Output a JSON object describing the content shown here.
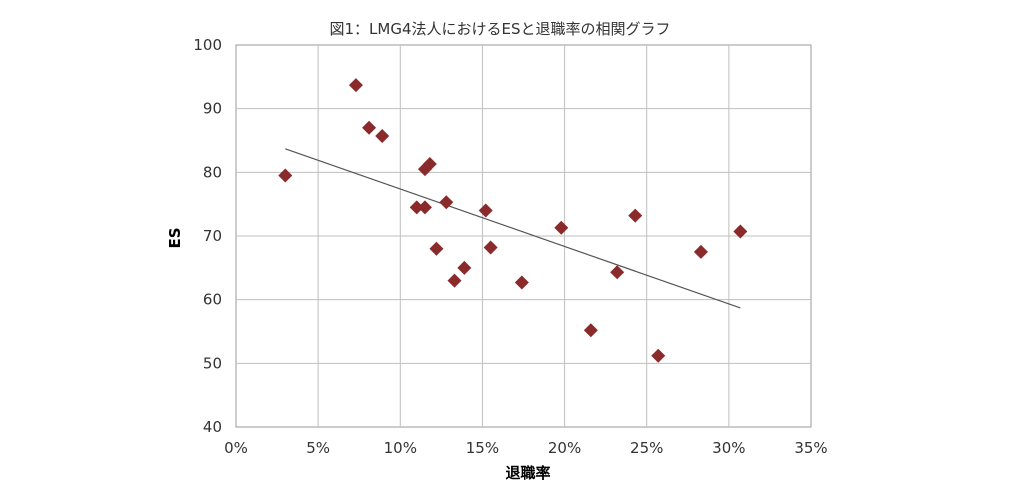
{
  "chart_data": {
    "type": "scatter",
    "title": "図1：LMG4法人におけるESと退職率の相関グラフ",
    "xlabel": "退職率",
    "ylabel": "ES",
    "xlim": [
      0,
      0.35
    ],
    "ylim": [
      40,
      100
    ],
    "x_ticks": [
      0,
      0.05,
      0.1,
      0.15,
      0.2,
      0.25,
      0.3,
      0.35
    ],
    "x_tick_labels": [
      "0%",
      "5%",
      "10%",
      "15%",
      "20%",
      "25%",
      "30%",
      "35%"
    ],
    "y_ticks": [
      40,
      50,
      60,
      70,
      80,
      90,
      100
    ],
    "y_tick_labels": [
      "40",
      "50",
      "60",
      "70",
      "80",
      "90",
      "100"
    ],
    "grid": true,
    "marker": "diamond",
    "colors": {
      "marker": "#8b2a2a",
      "trendline": "#555555",
      "grid": "#bfbfbf"
    },
    "series": [
      {
        "points": [
          {
            "x": 0.03,
            "y": 79.5
          },
          {
            "x": 0.073,
            "y": 93.7
          },
          {
            "x": 0.081,
            "y": 87.0
          },
          {
            "x": 0.089,
            "y": 85.7
          },
          {
            "x": 0.11,
            "y": 74.5
          },
          {
            "x": 0.115,
            "y": 80.5
          },
          {
            "x": 0.115,
            "y": 74.5
          },
          {
            "x": 0.118,
            "y": 81.3
          },
          {
            "x": 0.122,
            "y": 68.0
          },
          {
            "x": 0.128,
            "y": 75.3
          },
          {
            "x": 0.133,
            "y": 63.0
          },
          {
            "x": 0.139,
            "y": 65.0
          },
          {
            "x": 0.152,
            "y": 74.0
          },
          {
            "x": 0.155,
            "y": 68.2
          },
          {
            "x": 0.174,
            "y": 62.7
          },
          {
            "x": 0.198,
            "y": 71.3
          },
          {
            "x": 0.216,
            "y": 55.2
          },
          {
            "x": 0.232,
            "y": 64.3
          },
          {
            "x": 0.243,
            "y": 73.2
          },
          {
            "x": 0.257,
            "y": 51.2
          },
          {
            "x": 0.283,
            "y": 67.5
          },
          {
            "x": 0.307,
            "y": 70.7
          }
        ]
      }
    ],
    "trendline": {
      "x": [
        0.03,
        0.307
      ],
      "y": [
        83.7,
        58.7
      ]
    }
  }
}
